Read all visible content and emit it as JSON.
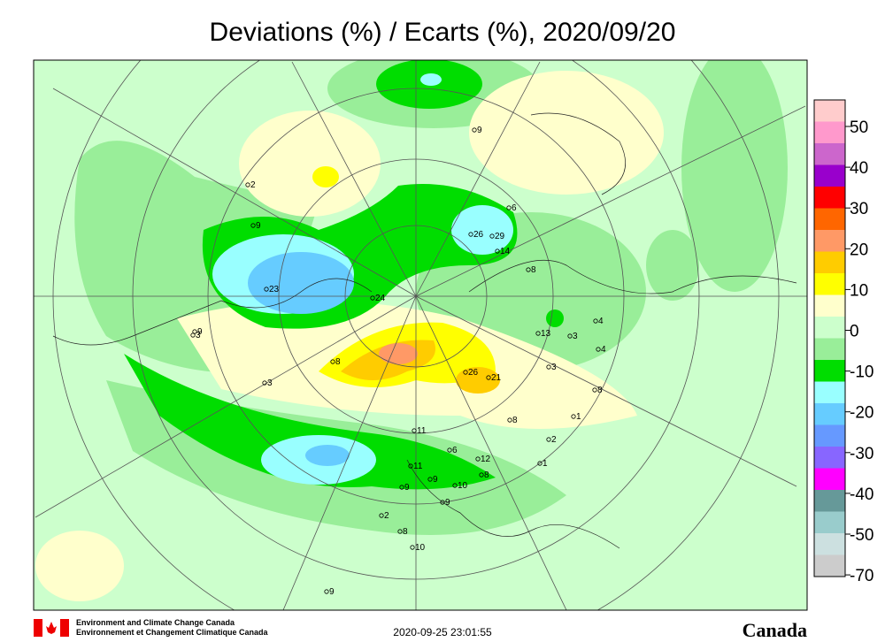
{
  "title": "Deviations (%) / Ecarts (%), 2020/09/20",
  "colorbar": {
    "colors": [
      "#ffcccc",
      "#ff99cc",
      "#cc66cc",
      "#9900cc",
      "#ff0000",
      "#ff6600",
      "#ff9966",
      "#ffcc00",
      "#ffff00",
      "#ffffcc",
      "#ccffcc",
      "#99ee99",
      "#00dd00",
      "#99ffff",
      "#66ccff",
      "#6699ff",
      "#8866ff",
      "#ff00ff",
      "#669999",
      "#99cccc",
      "#cce0e0",
      "#cccccc"
    ],
    "labels": [
      50,
      40,
      30,
      20,
      10,
      0,
      -10,
      -20,
      -30,
      -40,
      -50,
      -70
    ]
  },
  "stations": [
    "9",
    "2",
    "9",
    "6",
    "23",
    "26",
    "4",
    "8",
    "9",
    "14",
    "8",
    "13",
    "3",
    "4",
    "8",
    "3",
    "26",
    "21",
    "8",
    "1",
    "2",
    "3",
    "11",
    "6",
    "12",
    "1",
    "11",
    "9",
    "9",
    "10",
    "8",
    "9",
    "2",
    "8",
    "10",
    "9",
    "3",
    "24",
    "29"
  ],
  "footer": {
    "agency_en": "Environment and Climate Change Canada",
    "agency_fr": "Environnement et Changement Climatique Canada",
    "timestamp": "2020-09-25 23:01:55",
    "wordmark": "Canada"
  }
}
